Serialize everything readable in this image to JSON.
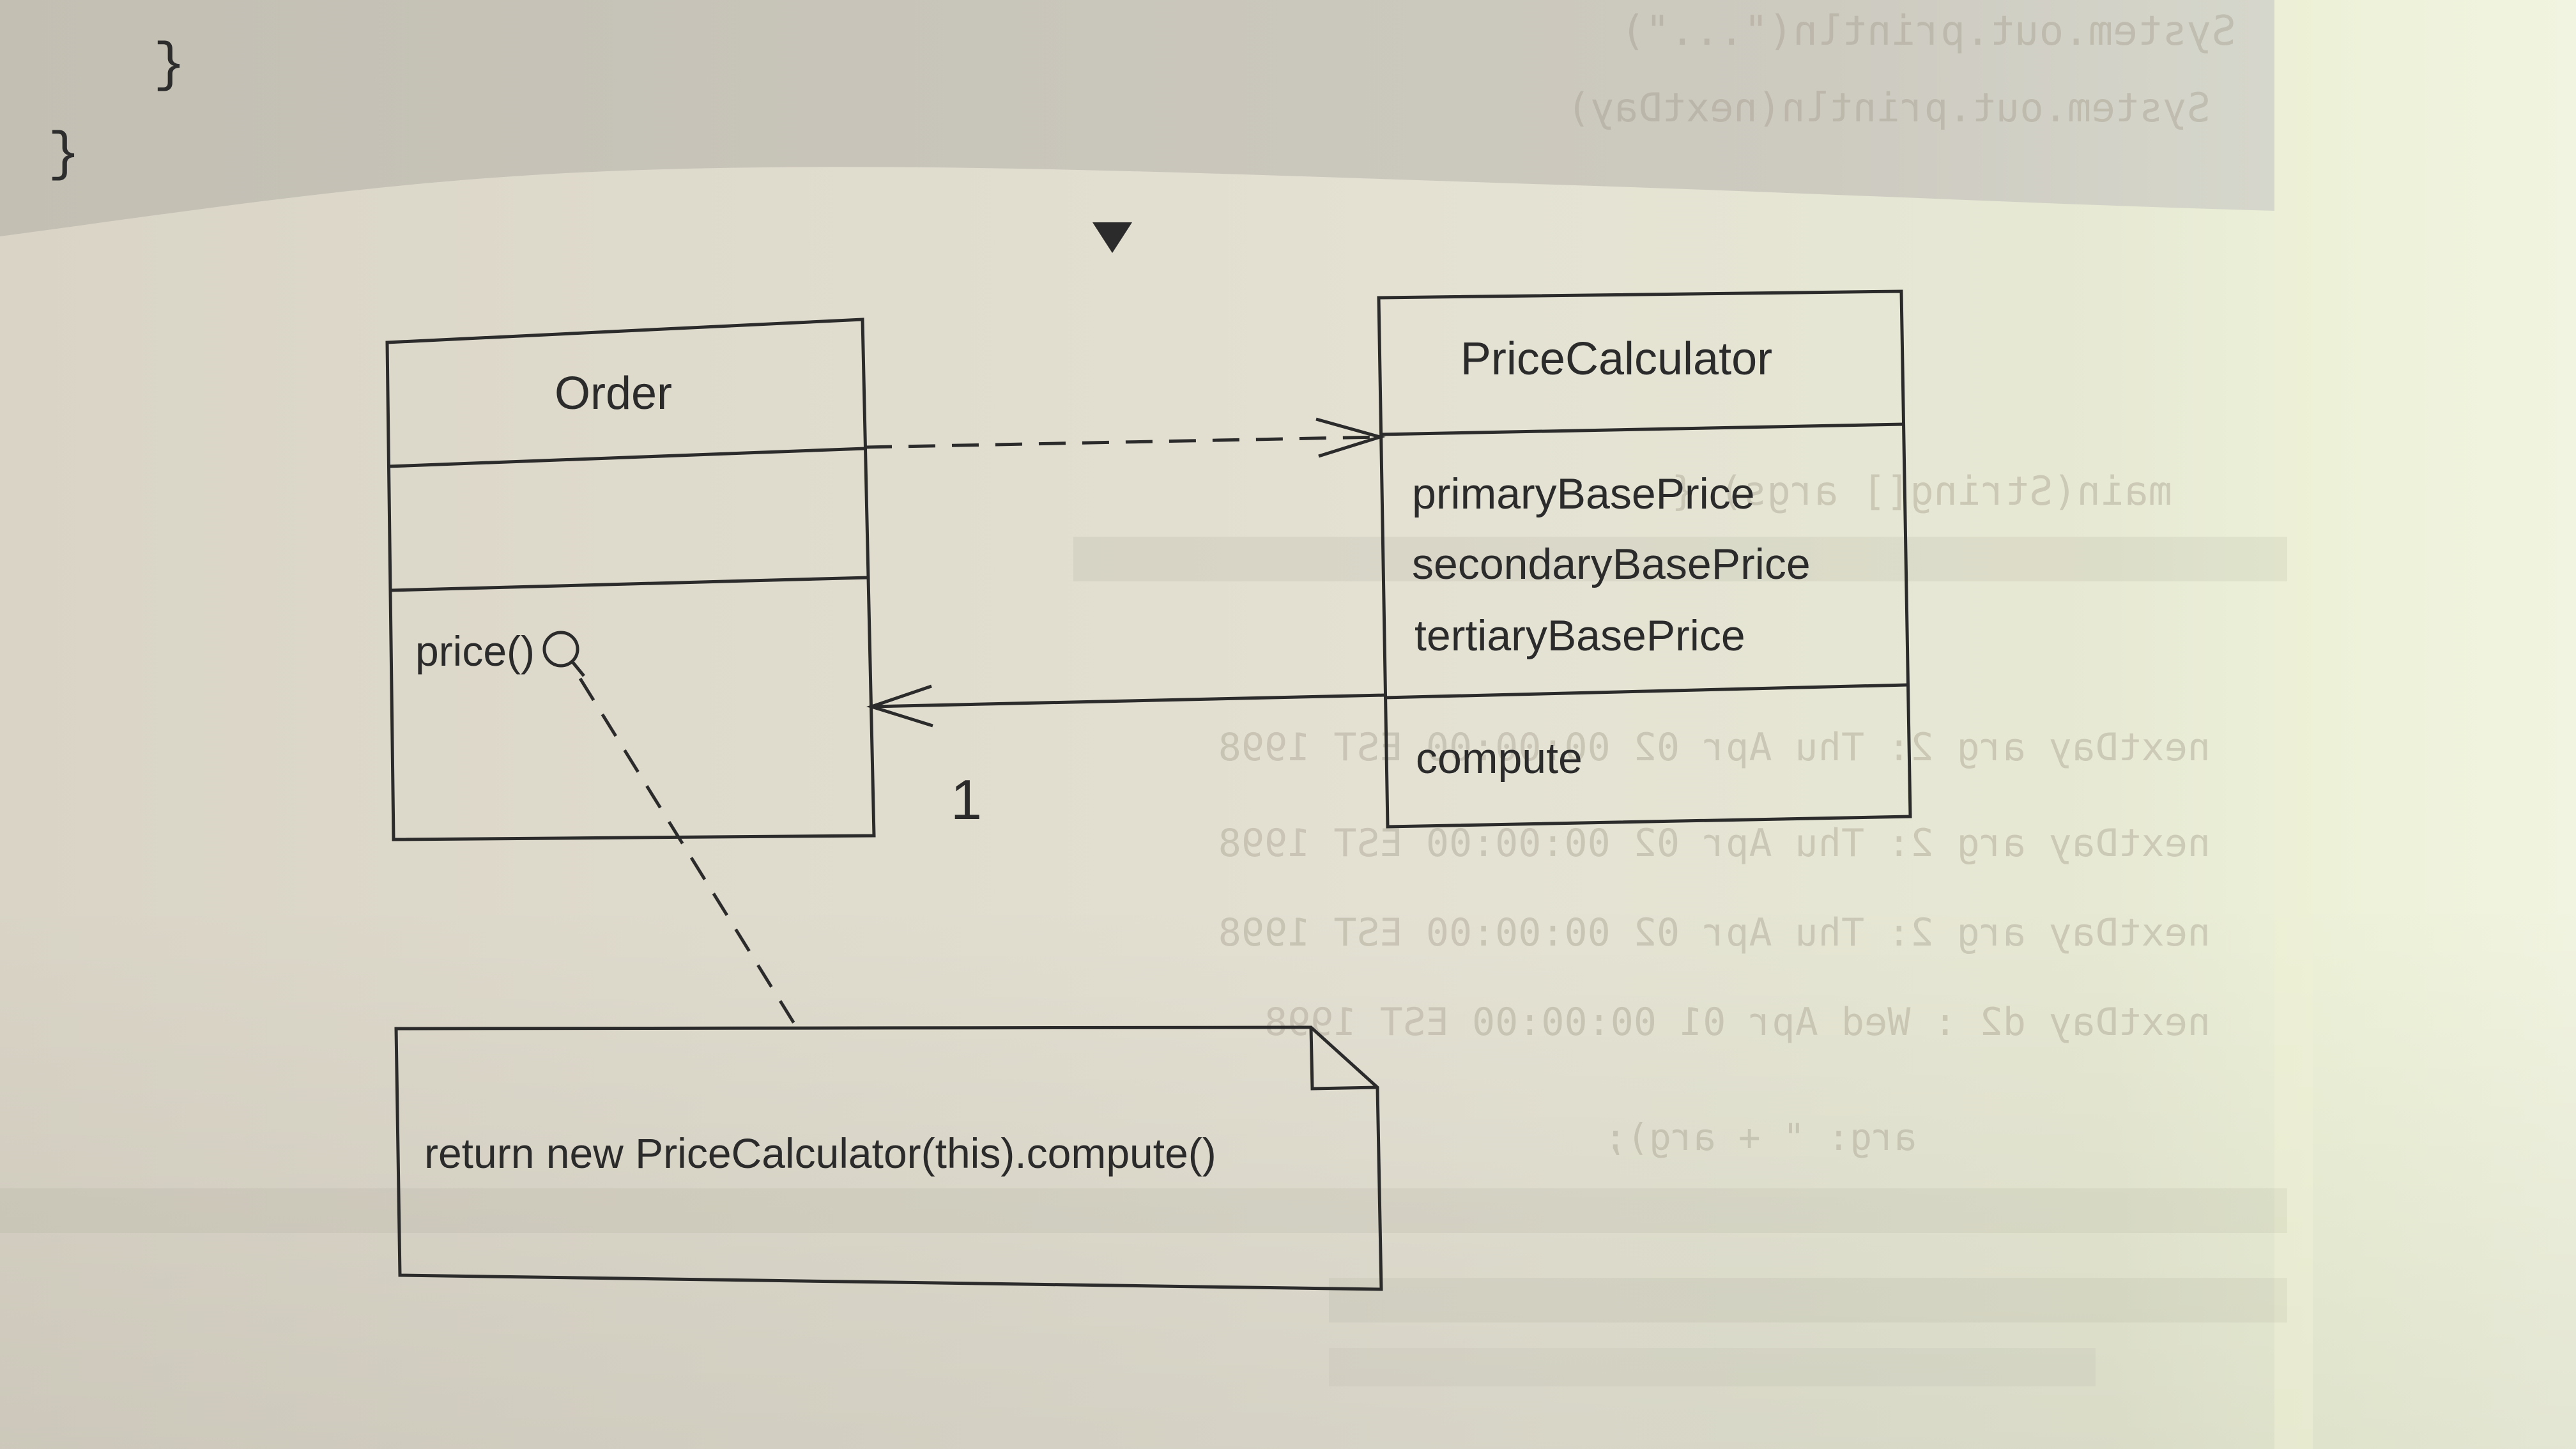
{
  "code_fragment": {
    "inner_brace": "}",
    "outer_brace": "}"
  },
  "diagram": {
    "order_class": {
      "name": "Order",
      "attributes": [],
      "operations": [
        "price()"
      ]
    },
    "price_calculator_class": {
      "name": "PriceCalculator",
      "attributes": [
        "primaryBasePrice",
        "secondaryBasePrice",
        "tertiaryBasePrice"
      ],
      "operations": [
        "compute"
      ]
    },
    "association_multiplicity": "1",
    "note_text": "return new PriceCalculator(this).compute()"
  },
  "colors": {
    "page": "#e3dfd2",
    "header_band": "#c9c5b9",
    "ink": "#2b2b2b",
    "edge_highlight": "#eef0d6"
  }
}
